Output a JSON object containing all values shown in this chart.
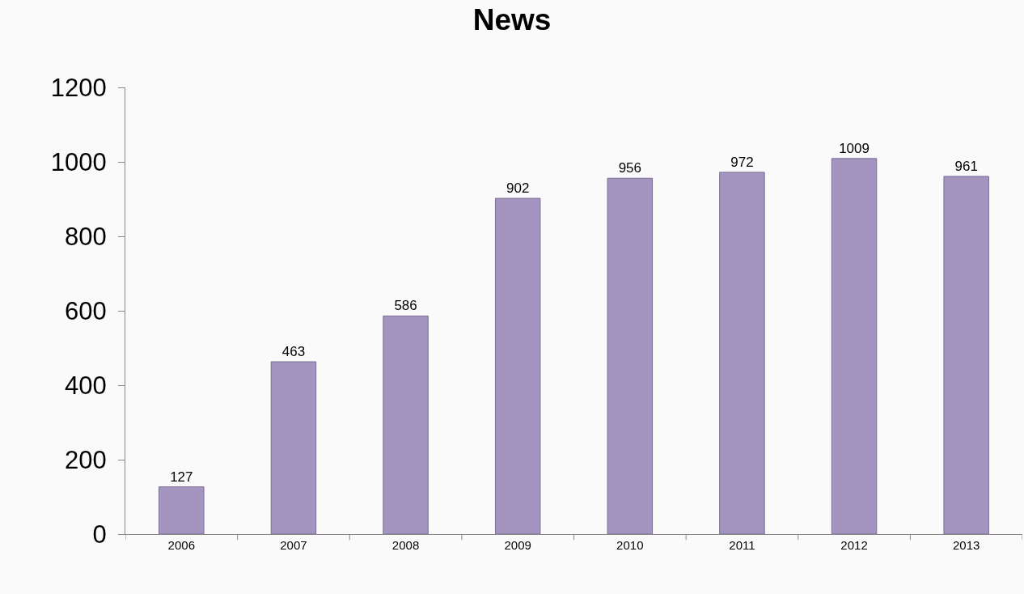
{
  "chart_data": {
    "type": "bar",
    "title": "News",
    "categories": [
      "2006",
      "2007",
      "2008",
      "2009",
      "2010",
      "2011",
      "2012",
      "2013"
    ],
    "values": [
      127,
      463,
      586,
      902,
      956,
      972,
      1009,
      961
    ],
    "color": "#a395c0",
    "ylim": [
      0,
      1200
    ],
    "yticks": [
      0,
      200,
      400,
      600,
      800,
      1000,
      1200
    ],
    "grid": false,
    "data_labels": true,
    "legend": false
  }
}
